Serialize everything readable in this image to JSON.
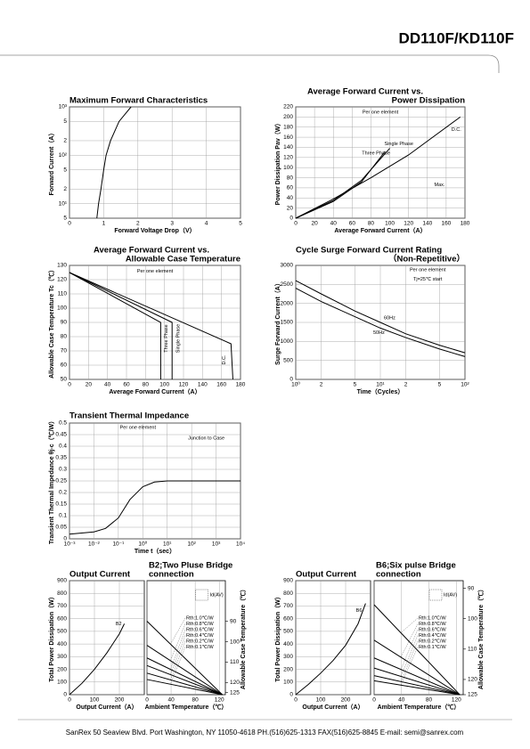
{
  "header": {
    "title": "DD110F/KD110F"
  },
  "footer": {
    "text": "SanRex 50 Seaview Blvd. Port Washington, NY 11050-4618 PH.(516)625-1313 FAX(516)625-8845 E-mail: semi@sanrex.com"
  },
  "chart_data": [
    {
      "type": "line",
      "title": [
        "Maximum Forward Characteristics"
      ],
      "xlabel": "Forward Voltage Drop（V）",
      "ylabel": "Forward Current（A）",
      "color": "#000000",
      "grid": true,
      "xlim": [
        0,
        5
      ],
      "xticks": [
        0,
        1,
        2,
        3,
        4,
        5
      ],
      "ylim": [
        5,
        1000
      ],
      "ylog": true,
      "yticks": [
        {
          "value": 1000,
          "label": "10³"
        },
        {
          "value": 500,
          "label": "5"
        },
        {
          "value": 200,
          "label": "2"
        },
        {
          "value": 100,
          "label": "10²"
        },
        {
          "value": 50,
          "label": "5"
        },
        {
          "value": 20,
          "label": "2"
        },
        {
          "value": 10,
          "label": "10¹"
        },
        5
      ],
      "x": [
        0.8,
        0.85,
        0.92,
        1.0,
        1.07,
        1.2,
        1.45,
        1.8
      ],
      "values": [
        5,
        10,
        20,
        50,
        100,
        200,
        500,
        1000
      ]
    },
    {
      "type": "line",
      "title": [
        "Average Forward Current vs.",
        "Power Dissipation"
      ],
      "xlabel": "Average Forward Current（A）",
      "ylabel": "Power Dissipation Pav（W）",
      "color": "#000000",
      "grid": true,
      "xlim": [
        0,
        180
      ],
      "xticks": [
        0,
        20,
        40,
        60,
        80,
        100,
        120,
        140,
        160,
        180
      ],
      "ylim": [
        0,
        220
      ],
      "yticks": [
        0,
        20,
        40,
        60,
        80,
        100,
        120,
        140,
        160,
        180,
        200,
        220
      ],
      "series": [
        {
          "name": "D.C.",
          "x": [
            0,
            40,
            80,
            120,
            175
          ],
          "values": [
            0,
            38,
            80,
            125,
            200
          ]
        },
        {
          "name": "Single Phase",
          "x": [
            0,
            40,
            70,
            100
          ],
          "values": [
            0,
            35,
            75,
            138
          ]
        },
        {
          "name": "Three Phase",
          "x": [
            0,
            40,
            70,
            95
          ],
          "values": [
            0,
            33,
            72,
            132
          ]
        }
      ],
      "annotations": [
        "Per one element",
        "Max."
      ]
    },
    {
      "type": "line",
      "title": [
        "Average Forward Current vs.",
        "Allowable Case Temperature"
      ],
      "xlabel": "Average Forward Current（A）",
      "ylabel": "Allowable Case Temperature Tc（℃）",
      "color": "#000000",
      "grid": true,
      "xlim": [
        0,
        180
      ],
      "xticks": [
        0,
        20,
        40,
        60,
        80,
        100,
        120,
        140,
        160,
        180
      ],
      "ylim": [
        50,
        130
      ],
      "yticks": [
        50,
        60,
        70,
        80,
        90,
        100,
        110,
        120,
        130
      ],
      "series": [
        {
          "name": "Three Phase",
          "x": [
            0,
            96,
            96
          ],
          "values": [
            125,
            90,
            50
          ]
        },
        {
          "name": "Single Phase",
          "x": [
            0,
            108,
            108
          ],
          "values": [
            125,
            90,
            50
          ]
        },
        {
          "name": "D.C.",
          "x": [
            0,
            170,
            172
          ],
          "values": [
            125,
            75,
            50
          ]
        }
      ],
      "annotations": [
        "Per one element"
      ]
    },
    {
      "type": "line",
      "title": [
        "Cycle Surge Forward Current Rating",
        "（Non-Repetitive）"
      ],
      "xlabel": "Time（Cycles）",
      "ylabel": "Surge Forward Current（A）",
      "color": "#000000",
      "grid": true,
      "xlim": [
        1,
        100
      ],
      "xlog": true,
      "xticks": [
        {
          "value": 1,
          "label": "10⁰"
        },
        2,
        5,
        {
          "value": 10,
          "label": "10¹"
        },
        {
          "value": 20,
          "label": "2"
        },
        {
          "value": 50,
          "label": "5"
        },
        {
          "value": 100,
          "label": "10²"
        }
      ],
      "ylim": [
        0,
        3000
      ],
      "yticks": [
        0,
        500,
        1000,
        1500,
        2000,
        2500,
        3000
      ],
      "series": [
        {
          "name": "60Hz",
          "x": [
            1,
            2,
            5,
            10,
            20,
            50,
            100
          ],
          "values": [
            2600,
            2250,
            1800,
            1500,
            1200,
            900,
            700
          ]
        },
        {
          "name": "50Hz",
          "x": [
            1,
            2,
            5,
            10,
            20,
            50,
            100
          ],
          "values": [
            2400,
            2050,
            1650,
            1350,
            1100,
            800,
            600
          ]
        }
      ],
      "annotations": [
        "Per one element",
        "Tj=25℃ start"
      ]
    },
    {
      "type": "line",
      "title": [
        "Transient Thermal Impedance"
      ],
      "xlabel": "Time t（sec）",
      "ylabel": "Transient Thermal Impedance θj-c（℃/W）",
      "color": "#000000",
      "grid": true,
      "xlim": [
        0.001,
        10000
      ],
      "xlog": true,
      "xticks": [
        {
          "value": 0.001,
          "label": "10⁻³"
        },
        {
          "value": 0.01,
          "label": "10⁻²"
        },
        {
          "value": 0.1,
          "label": "10⁻¹"
        },
        {
          "value": 1,
          "label": "10⁰"
        },
        {
          "value": 10,
          "label": "10¹"
        },
        {
          "value": 100,
          "label": "10²"
        },
        {
          "value": 1000,
          "label": "10³"
        },
        {
          "value": 10000,
          "label": "10⁴"
        }
      ],
      "ylim": [
        0,
        0.5
      ],
      "yticks": [
        0,
        0.05,
        0.1,
        0.15,
        0.2,
        0.25,
        0.3,
        0.35,
        0.4,
        0.45,
        0.5
      ],
      "x": [
        0.001,
        0.01,
        0.03,
        0.1,
        0.3,
        1,
        3,
        10,
        10000
      ],
      "values": [
        0.02,
        0.03,
        0.045,
        0.09,
        0.17,
        0.225,
        0.245,
        0.25,
        0.25
      ],
      "annotations": [
        "Per one element",
        "Junction to Case"
      ]
    },
    {
      "type": "line",
      "title": [
        "Output Current"
      ],
      "xlabel": "Output Current（A）",
      "ylabel": "Total Power Dissipation（W）",
      "color": "#000000",
      "grid": true,
      "xlim": [
        0,
        300
      ],
      "xticks": [
        0,
        100,
        200
      ],
      "ylim": [
        0,
        900
      ],
      "yticks": [
        0,
        100,
        200,
        300,
        400,
        500,
        600,
        700,
        800,
        900
      ],
      "series": [
        {
          "name": "B2",
          "x": [
            0,
            50,
            100,
            150,
            200,
            220
          ],
          "values": [
            0,
            90,
            200,
            330,
            480,
            560
          ]
        }
      ]
    },
    {
      "type": "line",
      "title": [
        "B2;Two Pluse Bridge",
        "connection"
      ],
      "xlabel": "Ambient Temperature（℃）",
      "y2label": "Allowable Case Temperature（℃）",
      "inset_label": "Id(AV)",
      "color": "#000000",
      "grid": true,
      "xlim": [
        0,
        130
      ],
      "xticks": [
        0,
        40,
        80,
        120
      ],
      "ylim": [
        0,
        900
      ],
      "y2lim": [
        126,
        70
      ],
      "y2ticks": [
        90,
        100,
        110,
        120,
        125
      ],
      "series": [
        {
          "name": "Rth:1.0℃/W",
          "x": [
            0,
            125
          ],
          "values": [
            580,
            0
          ]
        },
        {
          "name": "Rth:0.8℃/W",
          "x": [
            0,
            125
          ],
          "values": [
            390,
            0
          ]
        },
        {
          "name": "Rth:0.6℃/W",
          "x": [
            0,
            125
          ],
          "values": [
            290,
            0
          ]
        },
        {
          "name": "Rth:0.4℃/W",
          "x": [
            0,
            125
          ],
          "values": [
            230,
            0
          ]
        },
        {
          "name": "Rth:0.2℃/W",
          "x": [
            0,
            125
          ],
          "values": [
            170,
            0
          ]
        },
        {
          "name": "Rth:0.1℃/W",
          "x": [
            0,
            125
          ],
          "values": [
            120,
            0
          ]
        }
      ]
    },
    {
      "type": "line",
      "title": [
        "Output Current"
      ],
      "xlabel": "Output Current（A）",
      "ylabel": "Total Power Dissipation（W）",
      "color": "#000000",
      "grid": true,
      "xlim": [
        0,
        300
      ],
      "xticks": [
        0,
        100,
        200
      ],
      "ylim": [
        0,
        900
      ],
      "yticks": [
        0,
        100,
        200,
        300,
        400,
        500,
        600,
        700,
        800,
        900
      ],
      "series": [
        {
          "name": "B6",
          "x": [
            0,
            50,
            100,
            150,
            200,
            250,
            280
          ],
          "values": [
            0,
            80,
            170,
            270,
            390,
            560,
            720
          ]
        }
      ]
    },
    {
      "type": "line",
      "title": [
        "B6;Six pulse Bridge",
        "connection"
      ],
      "xlabel": "Ambient Temperature（℃）",
      "y2label": "Allowable Case Temperature（℃）",
      "inset_label": "Id(AV)",
      "color": "#000000",
      "grid": true,
      "xlim": [
        0,
        130
      ],
      "xticks": [
        0,
        40,
        80,
        120
      ],
      "ylim": [
        0,
        900
      ],
      "y2lim": [
        125,
        87.5
      ],
      "y2ticks": [
        90,
        100,
        110,
        120,
        125
      ],
      "series": [
        {
          "name": "Rth:1.0℃/W",
          "x": [
            0,
            125
          ],
          "values": [
            710,
            0
          ]
        },
        {
          "name": "Rth:0.8℃/W",
          "x": [
            0,
            125
          ],
          "values": [
            430,
            0
          ]
        },
        {
          "name": "Rth:0.6℃/W",
          "x": [
            0,
            125
          ],
          "values": [
            290,
            0
          ]
        },
        {
          "name": "Rth:0.4℃/W",
          "x": [
            0,
            125
          ],
          "values": [
            210,
            0
          ]
        },
        {
          "name": "Rth:0.2℃/W",
          "x": [
            0,
            125
          ],
          "values": [
            150,
            0
          ]
        },
        {
          "name": "Rth:0.1℃/W",
          "x": [
            0,
            125
          ],
          "values": [
            110,
            0
          ]
        }
      ]
    }
  ]
}
